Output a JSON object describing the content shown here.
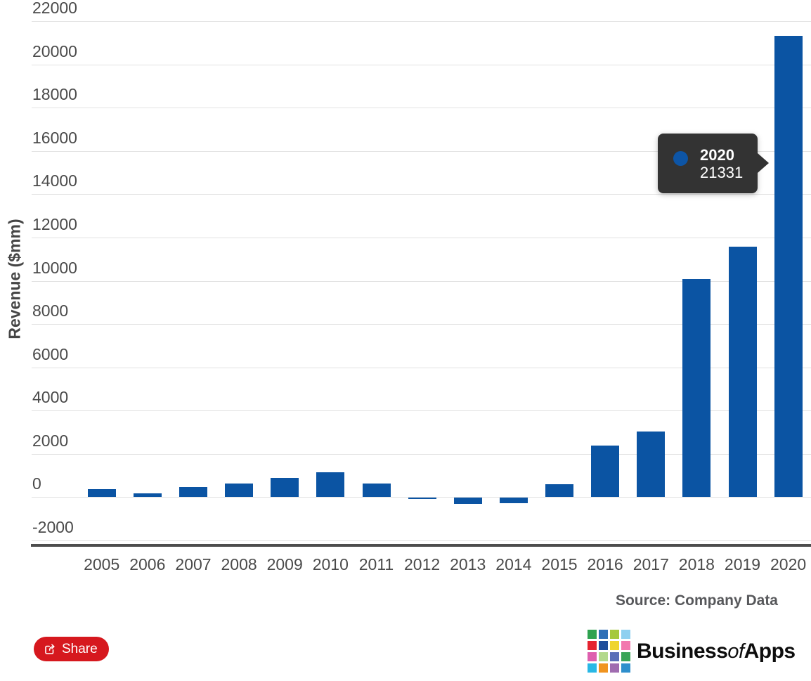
{
  "chart_data": {
    "type": "bar",
    "title": "",
    "xlabel": "",
    "ylabel": "Revenue ($mm)",
    "categories": [
      "2005",
      "2006",
      "2007",
      "2008",
      "2009",
      "2010",
      "2011",
      "2012",
      "2013",
      "2014",
      "2015",
      "2016",
      "2017",
      "2018",
      "2019",
      "2020"
    ],
    "values": [
      359,
      190,
      476,
      645,
      902,
      1152,
      631,
      -39,
      -274,
      -241,
      596,
      2371,
      3033,
      10073,
      11588,
      21331
    ],
    "ylim": [
      -2000,
      22000
    ],
    "y_ticks": [
      {
        "label": "22000",
        "value": 22000
      },
      {
        "label": "20000",
        "value": 20000
      },
      {
        "label": "18000",
        "value": 18000
      },
      {
        "label": "16000",
        "value": 16000
      },
      {
        "label": "14000",
        "value": 14000
      },
      {
        "label": "12000",
        "value": 12000
      },
      {
        "label": "10000",
        "value": 10000
      },
      {
        "label": "8000",
        "value": 8000
      },
      {
        "label": "6000",
        "value": 6000
      },
      {
        "label": "4000",
        "value": 4000
      },
      {
        "label": "2000",
        "value": 2000
      },
      {
        "label": "0",
        "value": 0
      },
      {
        "label": "-2000",
        "value": -2000
      }
    ],
    "grid": true,
    "legend": false,
    "bar_color": "#0b54a3"
  },
  "tooltip": {
    "year": "2020",
    "value": "21331",
    "bg_color": "#333333",
    "dot_color": "#0d55a6"
  },
  "footer": {
    "source": "Source: Company Data",
    "share_label": "Share",
    "share_color": "#d6181e",
    "logo": {
      "part1": "Business",
      "part2": "of",
      "part3": "Apps",
      "grid_colors": [
        "#2fa24f",
        "#2e6fb7",
        "#a6c93c",
        "#8fd0f0",
        "#e52330",
        "#1f4d9b",
        "#efd52d",
        "#f278ae",
        "#de5fae",
        "#b3d98b",
        "#5a6fb8",
        "#3aa558",
        "#29b8e5",
        "#f0941f",
        "#a06cb0",
        "#2e8fcc"
      ]
    }
  }
}
